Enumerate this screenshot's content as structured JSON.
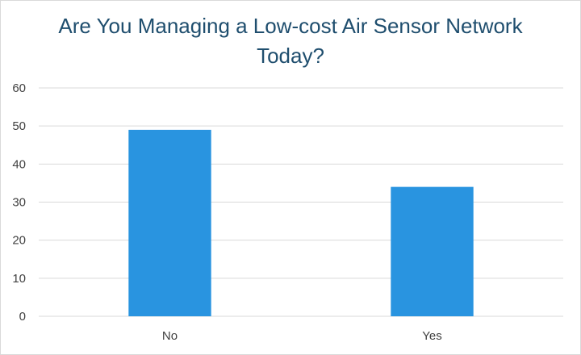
{
  "chart_data": {
    "type": "bar",
    "title_lines": [
      "Are You Managing a Low-cost Air Sensor Network",
      "Today?"
    ],
    "categories": [
      "No",
      "Yes"
    ],
    "values": [
      49,
      34
    ],
    "ylim": [
      0,
      60
    ],
    "yticks": [
      0,
      10,
      20,
      30,
      40,
      50,
      60
    ],
    "grid": true,
    "legend": "none",
    "bar_color": "#2994e0",
    "grid_color": "#d9d9d9",
    "title_color": "#1f4e6e"
  }
}
